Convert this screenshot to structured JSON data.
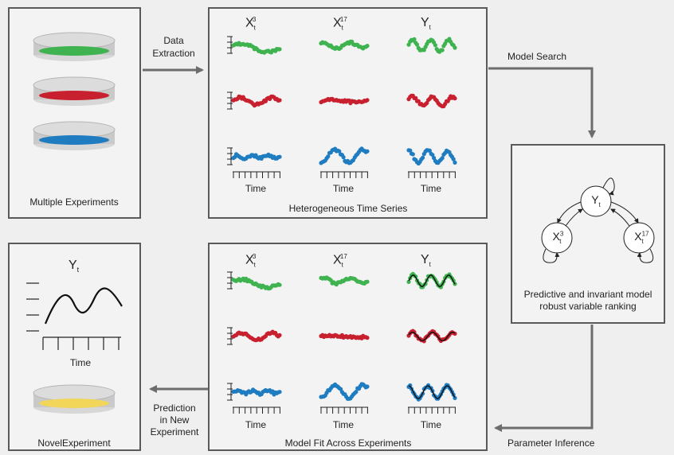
{
  "panels": {
    "experiments": {
      "caption": "Multiple Experiments"
    },
    "timeseries": {
      "caption": "Heterogeneous Time Series"
    },
    "model": {
      "caption_line1": "Predictive and invariant model",
      "caption_line2": "robust variable ranking"
    },
    "fit": {
      "caption": "Model Fit Across Experiments"
    },
    "novel": {
      "caption": "NovelExperiment",
      "series_title": "Y",
      "series_sub": "t",
      "axis_label": "Time"
    }
  },
  "arrows": {
    "extraction_line1": "Data",
    "extraction_line2": "Extraction",
    "search": "Model Search",
    "inference": "Parameter Inference",
    "prediction_line1": "Prediction",
    "prediction_line2": "in New",
    "prediction_line3": "Experiment"
  },
  "columns": [
    {
      "var": "X",
      "sub": "t",
      "sup": "3"
    },
    {
      "var": "X",
      "sub": "t",
      "sup": "17"
    },
    {
      "var": "Y",
      "sub": "t",
      "sup": ""
    }
  ],
  "time_label": "Time",
  "graph_nodes": {
    "y": {
      "var": "Y",
      "sub": "t",
      "sup": ""
    },
    "x3": {
      "var": "X",
      "sub": "t",
      "sup": "3"
    },
    "x17": {
      "var": "X",
      "sub": "t",
      "sup": "17"
    }
  },
  "colors": {
    "green": "#3eb34f",
    "red": "#c8202f",
    "blue": "#1f7cc1",
    "yellow": "#f2d65a",
    "border": "#5a5a5a",
    "arrow": "#6d6d6d"
  }
}
